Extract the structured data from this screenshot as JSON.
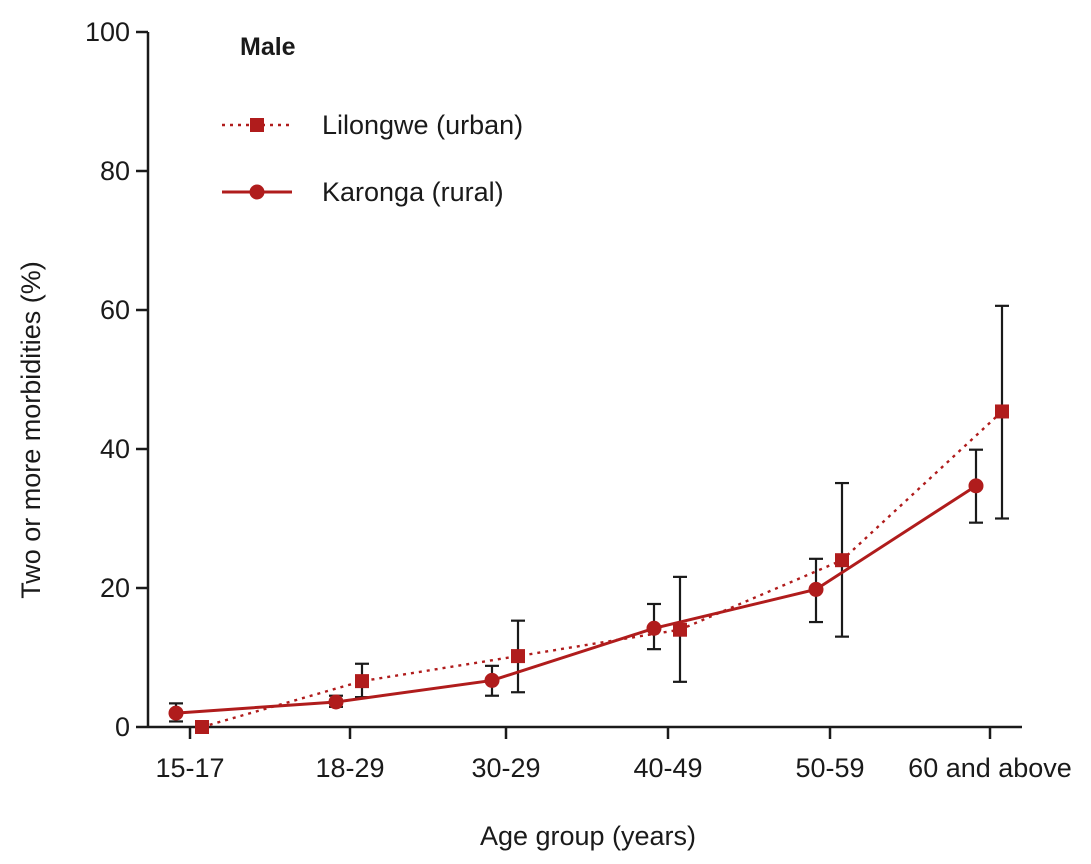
{
  "chart_data": {
    "type": "line",
    "title": "Male",
    "xlabel": "Age group (years)",
    "ylabel": "Two or more morbidities (%)",
    "categories": [
      "15-17",
      "18-29",
      "30-29",
      "40-49",
      "50-59",
      "60 and above"
    ],
    "ylim": [
      0,
      100
    ],
    "yticks": [
      0,
      20,
      40,
      60,
      80,
      100
    ],
    "grid": false,
    "legend_position": "top-left",
    "series": [
      {
        "name": "Lilongwe (urban)",
        "line_style": "dotted",
        "marker": "square",
        "values": [
          0,
          6.6,
          10.2,
          14.0,
          24.0,
          45.4
        ],
        "error_low": [
          0,
          4.3,
          5.0,
          6.5,
          13.0,
          30.0
        ],
        "error_high": [
          0,
          9.1,
          15.3,
          21.6,
          35.1,
          60.6
        ]
      },
      {
        "name": "Karonga (rural)",
        "line_style": "solid",
        "marker": "circle",
        "values": [
          2.0,
          3.6,
          6.7,
          14.2,
          19.8,
          34.7
        ],
        "error_low": [
          0.8,
          2.9,
          4.5,
          11.2,
          15.1,
          29.4
        ],
        "error_high": [
          3.4,
          4.5,
          8.8,
          17.7,
          24.2,
          39.9
        ]
      }
    ],
    "colors": {
      "series": "#b01c1c",
      "axis": "#1a1a1a",
      "error_bars": "#1a1a1a"
    }
  }
}
